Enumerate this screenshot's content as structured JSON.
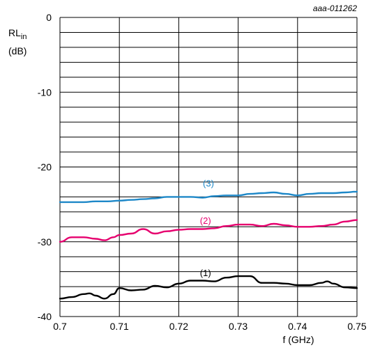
{
  "chart_data": {
    "type": "line",
    "figure_id": "aaa-011262",
    "ylabel_main": "RL",
    "ylabel_sub": "in",
    "yunit": "(dB)",
    "xlabel": "f (GHz)",
    "xlim": [
      0.7,
      0.75
    ],
    "ylim": [
      -40,
      0
    ],
    "xticks": [
      "0.7",
      "0.71",
      "0.72",
      "0.73",
      "0.74",
      "0.75"
    ],
    "yticks": [
      "0",
      "-10",
      "-20",
      "-30",
      "-40"
    ],
    "grid": true,
    "series": [
      {
        "name": "(1)",
        "color": "#000000",
        "label_at": [
          0.7245,
          -34.6
        ],
        "x": [
          0.7,
          0.702,
          0.704,
          0.705,
          0.706,
          0.7075,
          0.709,
          0.71,
          0.712,
          0.714,
          0.716,
          0.718,
          0.72,
          0.722,
          0.724,
          0.726,
          0.728,
          0.73,
          0.732,
          0.734,
          0.736,
          0.738,
          0.74,
          0.742,
          0.744,
          0.745,
          0.746,
          0.748,
          0.75
        ],
        "y": [
          -37.6,
          -37.4,
          -37.0,
          -36.9,
          -37.2,
          -37.6,
          -37.0,
          -36.2,
          -36.5,
          -36.4,
          -35.9,
          -36.1,
          -35.6,
          -35.2,
          -35.2,
          -35.3,
          -34.8,
          -34.6,
          -34.6,
          -35.5,
          -35.5,
          -35.6,
          -35.8,
          -35.8,
          -35.5,
          -35.3,
          -35.6,
          -36.1,
          -36.2
        ]
      },
      {
        "name": "(2)",
        "color": "#e6006e",
        "label_at": [
          0.7245,
          -27.6
        ],
        "x": [
          0.7,
          0.702,
          0.704,
          0.706,
          0.7075,
          0.709,
          0.71,
          0.712,
          0.714,
          0.716,
          0.718,
          0.72,
          0.722,
          0.724,
          0.726,
          0.728,
          0.73,
          0.732,
          0.734,
          0.736,
          0.738,
          0.74,
          0.742,
          0.744,
          0.746,
          0.748,
          0.75
        ],
        "y": [
          -30.0,
          -29.4,
          -29.4,
          -29.6,
          -29.8,
          -29.4,
          -29.1,
          -28.9,
          -28.3,
          -28.9,
          -28.6,
          -28.4,
          -28.3,
          -28.3,
          -28.2,
          -27.9,
          -27.7,
          -27.7,
          -27.9,
          -27.6,
          -27.8,
          -28.0,
          -28.0,
          -27.9,
          -27.7,
          -27.3,
          -27.1
        ]
      },
      {
        "name": "(3)",
        "color": "#1e88c8",
        "label_at": [
          0.725,
          -22.6
        ],
        "x": [
          0.7,
          0.702,
          0.704,
          0.706,
          0.708,
          0.71,
          0.712,
          0.714,
          0.716,
          0.718,
          0.72,
          0.722,
          0.724,
          0.726,
          0.728,
          0.73,
          0.732,
          0.734,
          0.736,
          0.738,
          0.74,
          0.742,
          0.744,
          0.746,
          0.748,
          0.75
        ],
        "y": [
          -24.7,
          -24.7,
          -24.7,
          -24.6,
          -24.6,
          -24.5,
          -24.4,
          -24.3,
          -24.2,
          -24.0,
          -24.0,
          -24.0,
          -24.1,
          -23.9,
          -23.8,
          -23.8,
          -23.6,
          -23.5,
          -23.4,
          -23.6,
          -23.8,
          -23.6,
          -23.5,
          -23.5,
          -23.4,
          -23.3
        ]
      }
    ]
  }
}
